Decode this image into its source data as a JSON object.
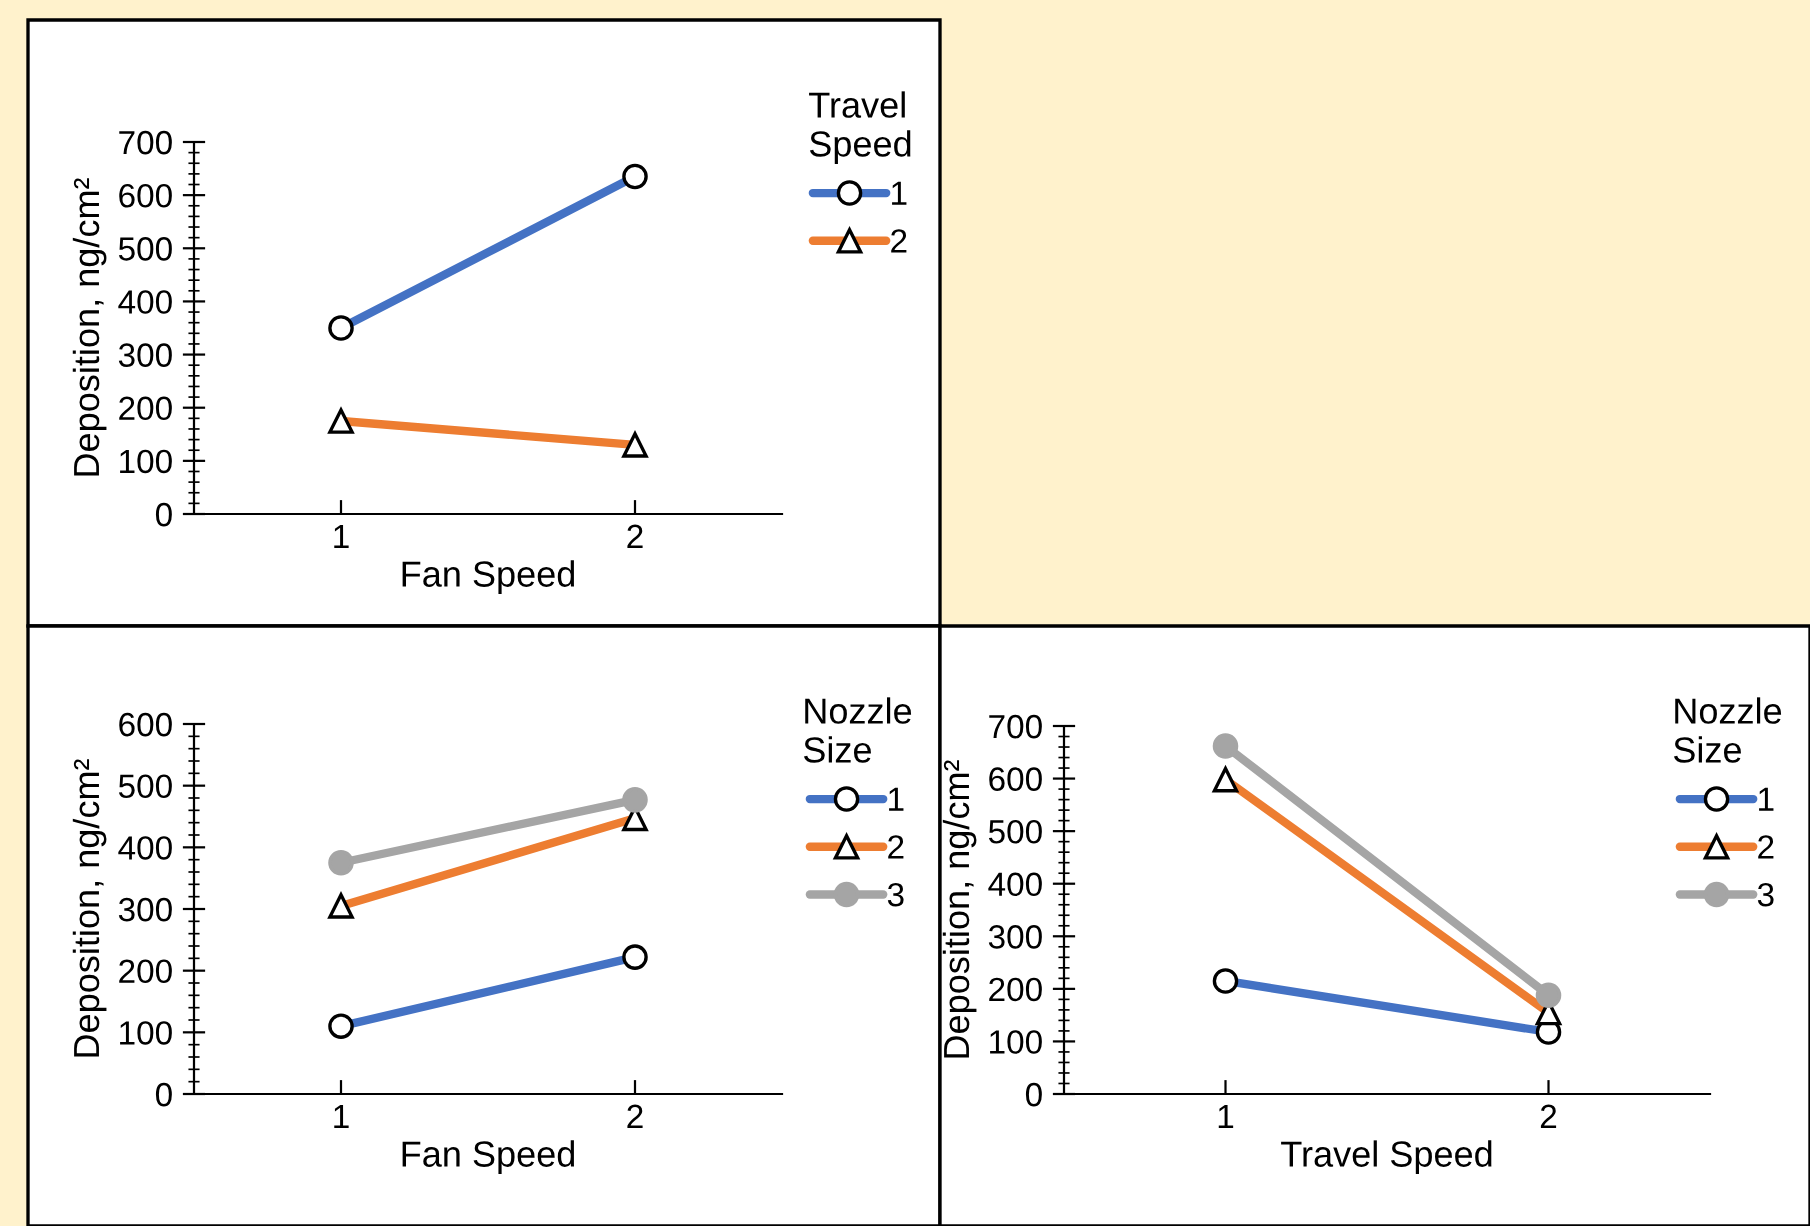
{
  "chart_data": [
    {
      "type": "line",
      "xlabel": "Fan Speed",
      "ylabel": "Deposition, ng/cm²",
      "legend_title": "Travel\nSpeed",
      "legend": "top right",
      "grid": false,
      "categories": [
        "1",
        "2"
      ],
      "ylim": [
        0,
        700
      ],
      "yticks": [
        0,
        {
          "value": 20,
          "label": null
        },
        {
          "value": 40,
          "label": null
        },
        {
          "value": 60,
          "label": null
        },
        {
          "value": 80,
          "label": null
        },
        100,
        {
          "value": 120,
          "label": null
        },
        {
          "value": 140,
          "label": null
        },
        {
          "value": 160,
          "label": null
        },
        {
          "value": 180,
          "label": null
        },
        200,
        {
          "value": 220,
          "label": null
        },
        {
          "value": 240,
          "label": null
        },
        {
          "value": 260,
          "label": null
        },
        {
          "value": 280,
          "label": null
        },
        300,
        {
          "value": 320,
          "label": null
        },
        {
          "value": 340,
          "label": null
        },
        {
          "value": 360,
          "label": null
        },
        {
          "value": 380,
          "label": null
        },
        400,
        {
          "value": 420,
          "label": null
        },
        {
          "value": 440,
          "label": null
        },
        {
          "value": 460,
          "label": null
        },
        {
          "value": 480,
          "label": null
        },
        500,
        {
          "value": 520,
          "label": null
        },
        {
          "value": 540,
          "label": null
        },
        {
          "value": 560,
          "label": null
        },
        {
          "value": 580,
          "label": null
        },
        600,
        {
          "value": 620,
          "label": null
        },
        {
          "value": 640,
          "label": null
        },
        {
          "value": 660,
          "label": null
        },
        {
          "value": 680,
          "label": null
        },
        700
      ],
      "series": [
        {
          "name": "1",
          "color": "#4472c4",
          "marker": "circle",
          "values": [
            350,
            635
          ]
        },
        {
          "name": "2",
          "color": "#ed7d31",
          "marker": "triangle",
          "values": [
            175,
            130
          ]
        }
      ]
    },
    {
      "type": "line",
      "xlabel": "Fan Speed",
      "ylabel": "Deposition, ng/cm²",
      "legend_title": "Nozzle\nSize",
      "legend": "top right",
      "grid": false,
      "categories": [
        "1",
        "2"
      ],
      "ylim": [
        0,
        600
      ],
      "yticks": [
        0,
        {
          "value": 20,
          "label": null
        },
        {
          "value": 40,
          "label": null
        },
        {
          "value": 60,
          "label": null
        },
        {
          "value": 80,
          "label": null
        },
        100,
        {
          "value": 120,
          "label": null
        },
        {
          "value": 140,
          "label": null
        },
        {
          "value": 160,
          "label": null
        },
        {
          "value": 180,
          "label": null
        },
        200,
        {
          "value": 220,
          "label": null
        },
        {
          "value": 240,
          "label": null
        },
        {
          "value": 260,
          "label": null
        },
        {
          "value": 280,
          "label": null
        },
        300,
        {
          "value": 320,
          "label": null
        },
        {
          "value": 340,
          "label": null
        },
        {
          "value": 360,
          "label": null
        },
        {
          "value": 380,
          "label": null
        },
        400,
        {
          "value": 420,
          "label": null
        },
        {
          "value": 440,
          "label": null
        },
        {
          "value": 460,
          "label": null
        },
        {
          "value": 480,
          "label": null
        },
        500,
        {
          "value": 520,
          "label": null
        },
        {
          "value": 540,
          "label": null
        },
        {
          "value": 560,
          "label": null
        },
        {
          "value": 580,
          "label": null
        },
        600
      ],
      "series": [
        {
          "name": "1",
          "color": "#4472c4",
          "marker": "circle",
          "values": [
            110,
            222
          ]
        },
        {
          "name": "2",
          "color": "#ed7d31",
          "marker": "triangle",
          "values": [
            305,
            447
          ]
        },
        {
          "name": "3",
          "color": "#a5a5a5",
          "marker": "circle",
          "values": [
            375,
            477
          ]
        }
      ]
    },
    {
      "type": "line",
      "xlabel": "Travel Speed",
      "ylabel": "Deposition, ng/cm²",
      "legend_title": "Nozzle\nSize",
      "legend": "top right",
      "grid": false,
      "categories": [
        "1",
        "2"
      ],
      "ylim": [
        0,
        700
      ],
      "yticks": [
        0,
        {
          "value": 20,
          "label": null
        },
        {
          "value": 40,
          "label": null
        },
        {
          "value": 60,
          "label": null
        },
        {
          "value": 80,
          "label": null
        },
        100,
        {
          "value": 120,
          "label": null
        },
        {
          "value": 140,
          "label": null
        },
        {
          "value": 160,
          "label": null
        },
        {
          "value": 180,
          "label": null
        },
        200,
        {
          "value": 220,
          "label": null
        },
        {
          "value": 240,
          "label": null
        },
        {
          "value": 260,
          "label": null
        },
        {
          "value": 280,
          "label": null
        },
        300,
        {
          "value": 320,
          "label": null
        },
        {
          "value": 340,
          "label": null
        },
        {
          "value": 360,
          "label": null
        },
        {
          "value": 380,
          "label": null
        },
        400,
        {
          "value": 420,
          "label": null
        },
        {
          "value": 440,
          "label": null
        },
        {
          "value": 460,
          "label": null
        },
        {
          "value": 480,
          "label": null
        },
        500,
        {
          "value": 520,
          "label": null
        },
        {
          "value": 540,
          "label": null
        },
        {
          "value": 560,
          "label": null
        },
        {
          "value": 580,
          "label": null
        },
        600,
        {
          "value": 620,
          "label": null
        },
        {
          "value": 640,
          "label": null
        },
        {
          "value": 660,
          "label": null
        },
        {
          "value": 680,
          "label": null
        },
        700
      ],
      "series": [
        {
          "name": "1",
          "color": "#4472c4",
          "marker": "circle",
          "values": [
            215,
            118
          ]
        },
        {
          "name": "2",
          "color": "#ed7d31",
          "marker": "triangle",
          "values": [
            598,
            155
          ]
        },
        {
          "name": "3",
          "color": "#a5a5a5",
          "marker": "circle",
          "values": [
            662,
            188
          ]
        }
      ]
    }
  ]
}
